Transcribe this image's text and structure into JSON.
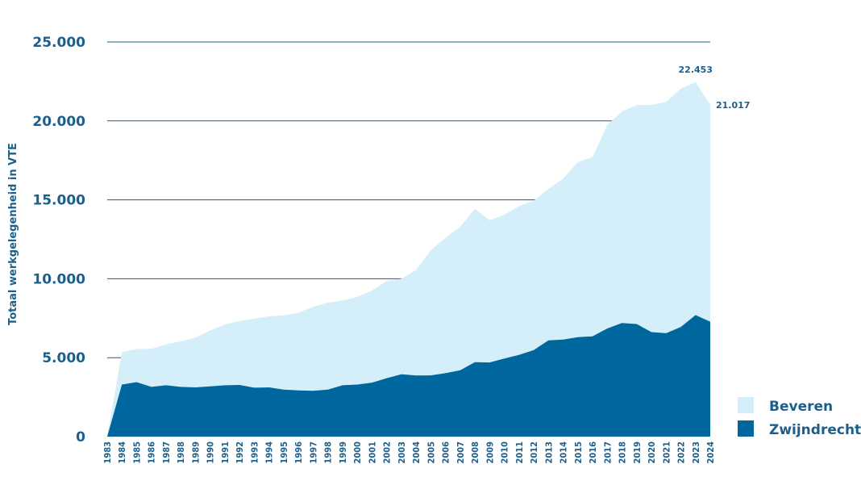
{
  "chart_data": {
    "type": "area",
    "stacked": true,
    "title": "",
    "xlabel": "",
    "ylabel": "Totaal werkgelegenheid in VTE",
    "ylim": [
      0,
      25000
    ],
    "yticks": [
      0,
      5000,
      10000,
      15000,
      20000,
      25000
    ],
    "ytick_labels": [
      "0",
      "5.000",
      "10.000",
      "15.000",
      "20.000",
      "25.000"
    ],
    "categories": [
      "1983",
      "1984",
      "1985",
      "1986",
      "1987",
      "1988",
      "1989",
      "1990",
      "1991",
      "1992",
      "1993",
      "1994",
      "1995",
      "1996",
      "1997",
      "1998",
      "1999",
      "2000",
      "2001",
      "2002",
      "2003",
      "2004",
      "2005",
      "2006",
      "2007",
      "2008",
      "2009",
      "2010",
      "2011",
      "2012",
      "2013",
      "2014",
      "2015",
      "2016",
      "2017",
      "2018",
      "2019",
      "2020",
      "2021",
      "2022",
      "2023",
      "2024"
    ],
    "series": [
      {
        "name": "Zwijndrecht",
        "color": "#00679e",
        "values": [
          0,
          3300,
          3450,
          3150,
          3250,
          3150,
          3120,
          3180,
          3250,
          3270,
          3100,
          3120,
          2980,
          2930,
          2900,
          2980,
          3250,
          3300,
          3420,
          3700,
          3950,
          3870,
          3880,
          4020,
          4200,
          4720,
          4700,
          4950,
          5180,
          5480,
          6100,
          6150,
          6300,
          6350,
          6850,
          7200,
          7130,
          6620,
          6550,
          6950,
          7700,
          7280
        ]
      },
      {
        "name": "Beveren",
        "color": "#d4eefa",
        "values": [
          0,
          2050,
          2100,
          2400,
          2600,
          2880,
          3150,
          3550,
          3850,
          4050,
          4370,
          4500,
          4700,
          4920,
          5320,
          5500,
          5370,
          5550,
          5830,
          6150,
          6050,
          6680,
          7920,
          8580,
          9100,
          9700,
          9000,
          9100,
          9420,
          9470,
          9600,
          10200,
          11100,
          11350,
          12900,
          13400,
          13870,
          14380,
          14650,
          15100,
          14753,
          13737
        ]
      }
    ],
    "annotations": [
      {
        "label": "22.453",
        "x": "2023",
        "value": 22453
      },
      {
        "label": "21.017",
        "x": "2024",
        "value": 21017
      }
    ],
    "legend": {
      "position": "bottom-right",
      "order": [
        "Beveren",
        "Zwijndrecht"
      ]
    },
    "grid": true
  }
}
